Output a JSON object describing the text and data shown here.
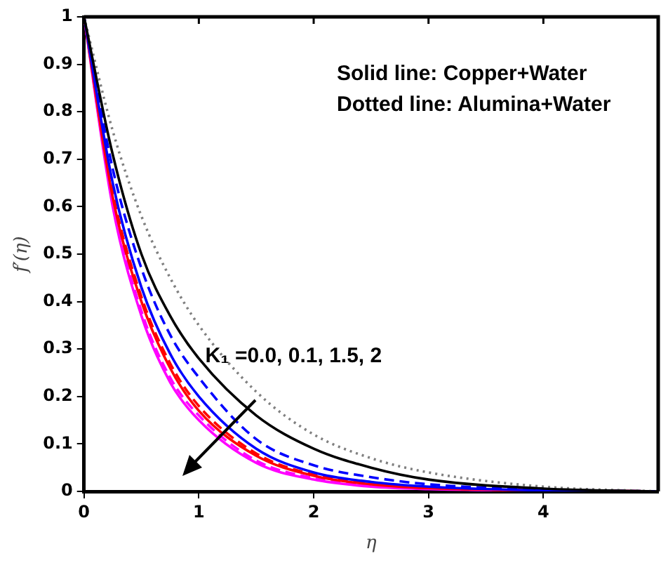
{
  "chart_data": {
    "type": "line",
    "xlabel": "η",
    "ylabel": "f′(η)",
    "x": [
      0,
      0.25,
      0.5,
      0.75,
      1,
      1.5,
      2,
      2.5,
      3,
      4,
      5
    ],
    "xlim": [
      0,
      5
    ],
    "xticks": [
      0,
      1,
      2,
      3,
      4
    ],
    "ylim": [
      0,
      1
    ],
    "yticks": [
      0,
      0.1,
      0.2,
      0.3,
      0.4,
      0.5,
      0.6,
      0.7,
      0.8,
      0.9,
      1
    ],
    "grid": false,
    "legend": false,
    "marker": "none",
    "series": [
      {
        "color": "#000000",
        "line_style": "solid",
        "values": [
          1,
          0.71,
          0.5,
          0.37,
          0.28,
          0.16,
          0.09,
          0.05,
          0.025,
          0.006,
          0
        ]
      },
      {
        "color": "#808080",
        "line_style": "dotted",
        "values": [
          1,
          0.76,
          0.58,
          0.45,
          0.35,
          0.21,
          0.12,
          0.07,
          0.04,
          0.01,
          0
        ]
      },
      {
        "color": "#0000ff",
        "line_style": "dashed",
        "values": [
          1,
          0.68,
          0.47,
          0.33,
          0.24,
          0.11,
          0.055,
          0.03,
          0.015,
          0.004,
          0
        ]
      },
      {
        "color": "#0000ff",
        "line_style": "solid",
        "values": [
          1,
          0.65,
          0.43,
          0.29,
          0.2,
          0.09,
          0.04,
          0.02,
          0.01,
          0.002,
          0
        ]
      },
      {
        "color": "#ff0000",
        "line_style": "dashed",
        "values": [
          1,
          0.63,
          0.41,
          0.27,
          0.18,
          0.08,
          0.035,
          0.017,
          0.008,
          null,
          0
        ]
      },
      {
        "color": "#ff0000",
        "line_style": "solid",
        "values": [
          1,
          0.62,
          0.4,
          0.26,
          0.17,
          0.075,
          0.033,
          0.015,
          0.007,
          null,
          0
        ]
      },
      {
        "color": "#ff00ff",
        "line_style": "dashed",
        "values": [
          1,
          0.61,
          0.38,
          0.24,
          0.16,
          0.065,
          0.028,
          0.012,
          0.006,
          null,
          0
        ]
      },
      {
        "color": "#ff00ff",
        "line_style": "solid",
        "values": [
          1,
          0.6,
          0.37,
          0.23,
          0.15,
          0.06,
          0.025,
          0.01,
          0.005,
          null,
          0
        ]
      }
    ],
    "annotations": [
      "Solid line: Copper+Water",
      "Dotted line: Alumina+Water",
      {
        "text": "K₁ =0.0, 0.1, 1.5, 2",
        "x": 1.3,
        "y": 0.28
      }
    ]
  }
}
